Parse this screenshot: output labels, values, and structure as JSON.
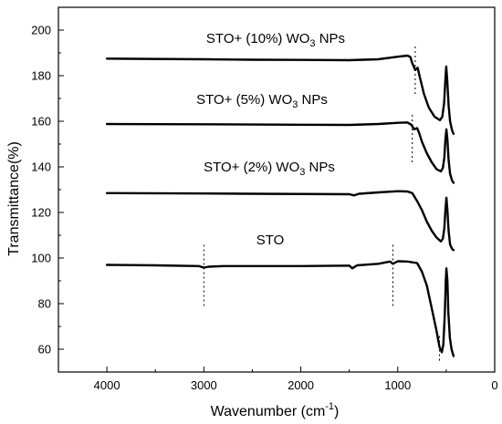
{
  "chart_data": {
    "type": "line",
    "xlabel": "Wavenumber (cm",
    "xlabel_sup": "-1",
    "xlabel_end": ")",
    "ylabel": "Transmittance(%)",
    "xlim": [
      4500,
      0
    ],
    "ylim": [
      50,
      210
    ],
    "xticks": [
      4000,
      3000,
      2000,
      1000,
      0
    ],
    "yticks": [
      60,
      80,
      100,
      120,
      140,
      160,
      180,
      200
    ],
    "series": [
      {
        "name": "STO",
        "points": [
          [
            4000,
            97
          ],
          [
            3500,
            96.8
          ],
          [
            3050,
            96.5
          ],
          [
            3000,
            95.8
          ],
          [
            2950,
            96.2
          ],
          [
            2800,
            96.5
          ],
          [
            2000,
            96.5
          ],
          [
            1500,
            96.7
          ],
          [
            1470,
            95.5
          ],
          [
            1420,
            96.8
          ],
          [
            1200,
            97.5
          ],
          [
            1080,
            98.5
          ],
          [
            1050,
            97.5
          ],
          [
            1000,
            98.6
          ],
          [
            900,
            98.5
          ],
          [
            800,
            97.8
          ],
          [
            750,
            94
          ],
          [
            700,
            88
          ],
          [
            650,
            78
          ],
          [
            600,
            68
          ],
          [
            570,
            61
          ],
          [
            545,
            58.7
          ],
          [
            530,
            62
          ],
          [
            515,
            75
          ],
          [
            505,
            90
          ],
          [
            498,
            95.5
          ],
          [
            488,
            90
          ],
          [
            478,
            76
          ],
          [
            462,
            65
          ],
          [
            445,
            60
          ],
          [
            425,
            57
          ]
        ]
      },
      {
        "name": "STO+ (2%) WO3 NPs",
        "prefix": "STO+ (2%) WO",
        "sub": "3",
        "suffix": " NPs",
        "points": [
          [
            4000,
            128.5
          ],
          [
            3000,
            128.3
          ],
          [
            2500,
            128.2
          ],
          [
            1500,
            128
          ],
          [
            1450,
            127.5
          ],
          [
            1400,
            128.2
          ],
          [
            1200,
            128.8
          ],
          [
            1000,
            129.3
          ],
          [
            900,
            129.2
          ],
          [
            850,
            128.5
          ],
          [
            800,
            125
          ],
          [
            750,
            121
          ],
          [
            700,
            116
          ],
          [
            650,
            112
          ],
          [
            600,
            109
          ],
          [
            555,
            107.3
          ],
          [
            535,
            108.5
          ],
          [
            520,
            113
          ],
          [
            508,
            121
          ],
          [
            498,
            126.5
          ],
          [
            488,
            121
          ],
          [
            475,
            112
          ],
          [
            460,
            106
          ],
          [
            440,
            104
          ],
          [
            425,
            103.5
          ]
        ]
      },
      {
        "name": "STO+ (5%) WO3 NPs",
        "prefix": "STO+ (5%) WO",
        "sub": "3",
        "suffix": " NPs",
        "points": [
          [
            4000,
            158.8
          ],
          [
            3000,
            158.7
          ],
          [
            2000,
            158.5
          ],
          [
            1500,
            158.4
          ],
          [
            1200,
            158.8
          ],
          [
            1000,
            159.3
          ],
          [
            900,
            159.5
          ],
          [
            860,
            158.5
          ],
          [
            830,
            156.5
          ],
          [
            800,
            157
          ],
          [
            780,
            155
          ],
          [
            750,
            151
          ],
          [
            700,
            146
          ],
          [
            650,
            142
          ],
          [
            600,
            139
          ],
          [
            555,
            138
          ],
          [
            535,
            139.5
          ],
          [
            520,
            144
          ],
          [
            508,
            152
          ],
          [
            498,
            156.5
          ],
          [
            488,
            152
          ],
          [
            475,
            143
          ],
          [
            460,
            137
          ],
          [
            440,
            134
          ],
          [
            425,
            133
          ]
        ]
      },
      {
        "name": "STO+ (10%) WO3 NPs",
        "prefix": "STO+ (10%) WO",
        "sub": "3",
        "suffix": " NPs",
        "points": [
          [
            4000,
            187.5
          ],
          [
            3000,
            187.2
          ],
          [
            2500,
            187
          ],
          [
            2000,
            186.9
          ],
          [
            1500,
            186.8
          ],
          [
            1200,
            187.2
          ],
          [
            1000,
            188.3
          ],
          [
            900,
            188.8
          ],
          [
            870,
            188.2
          ],
          [
            850,
            185.5
          ],
          [
            820,
            182.5
          ],
          [
            795,
            183.5
          ],
          [
            770,
            179
          ],
          [
            730,
            172
          ],
          [
            680,
            166
          ],
          [
            620,
            162
          ],
          [
            565,
            160.5
          ],
          [
            540,
            162
          ],
          [
            522,
            168
          ],
          [
            510,
            177
          ],
          [
            500,
            184
          ],
          [
            490,
            178
          ],
          [
            475,
            167
          ],
          [
            460,
            160
          ],
          [
            440,
            156
          ],
          [
            425,
            154.5
          ]
        ]
      }
    ],
    "reference_lines": [
      {
        "x": 3000,
        "y": [
          79,
          107
        ]
      },
      {
        "x": 1050,
        "y": [
          79,
          107
        ]
      },
      {
        "x": 570,
        "y": [
          55,
          67
        ]
      },
      {
        "x": 850,
        "y": [
          142,
          164
        ]
      },
      {
        "x": 820,
        "y": [
          172,
          193
        ]
      }
    ]
  }
}
